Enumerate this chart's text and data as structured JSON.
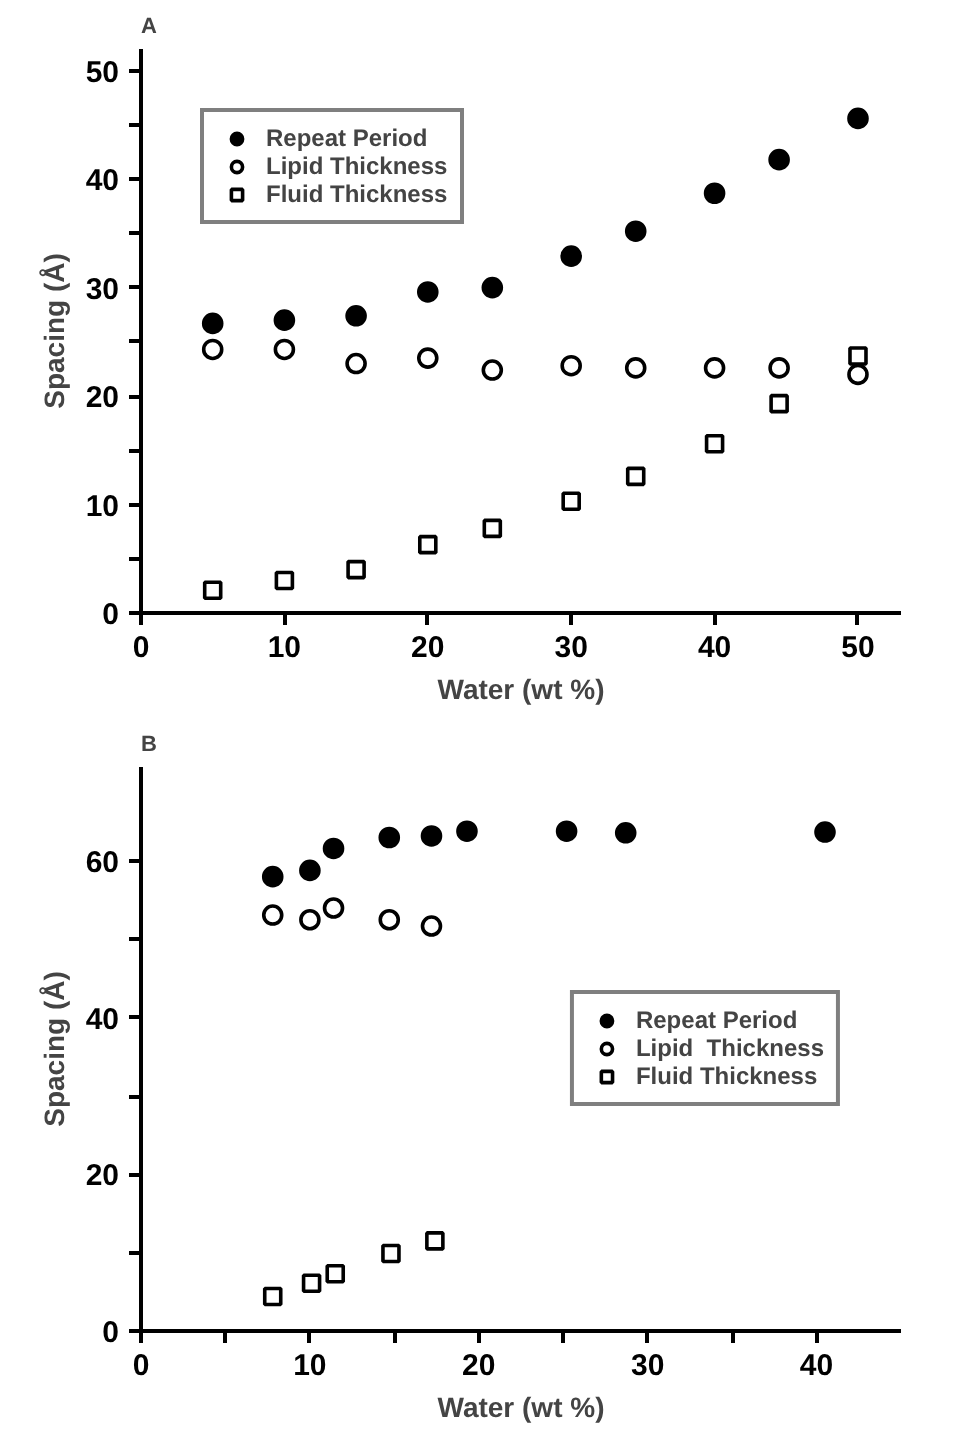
{
  "chart_data": [
    {
      "type": "scatter",
      "title": "A",
      "xlabel": "Water (wt %)",
      "ylabel": "Spacing (Å)",
      "xlim": [
        0,
        53
      ],
      "ylim": [
        0,
        52
      ],
      "xticks": [
        0,
        10,
        20,
        30,
        40,
        50
      ],
      "yticks": [
        0,
        {
          "value": 5,
          "label": null
        },
        10,
        {
          "value": 15,
          "label": null
        },
        20,
        {
          "value": 25,
          "label": null
        },
        30,
        {
          "value": 35,
          "label": null
        },
        40,
        {
          "value": 45,
          "label": null
        },
        50
      ],
      "grid": false,
      "legend": "top left",
      "series": [
        {
          "name": "Repeat Period",
          "color": "#000000",
          "marker": "circle",
          "x": [
            5,
            10,
            15,
            20,
            24.5,
            30,
            34.5,
            40,
            44.5,
            50
          ],
          "values": [
            26.7,
            27.0,
            27.4,
            29.6,
            30.0,
            32.9,
            35.2,
            38.7,
            41.8,
            45.6
          ]
        },
        {
          "name": "Lipid Thickness",
          "color": "#000000",
          "marker": "circle_open",
          "x": [
            5,
            10,
            15,
            20,
            24.5,
            30,
            34.5,
            40,
            44.5,
            50
          ],
          "values": [
            24.3,
            24.3,
            23.0,
            23.5,
            22.4,
            22.8,
            22.6,
            22.6,
            22.6,
            22.0
          ]
        },
        {
          "name": "Fluid Thickness",
          "color": "#000000",
          "marker": "square_open",
          "x": [
            5,
            10,
            15,
            20,
            24.5,
            30,
            34.5,
            40,
            44.5,
            50
          ],
          "values": [
            2.1,
            3.0,
            4.0,
            6.3,
            7.8,
            10.3,
            12.6,
            15.6,
            19.3,
            23.7
          ]
        }
      ]
    },
    {
      "type": "scatter",
      "title": "B",
      "xlabel": "Water (wt %)",
      "ylabel": "Spacing (Å)",
      "xlim": [
        0,
        45
      ],
      "ylim": [
        0,
        72
      ],
      "xticks": [
        0,
        {
          "value": 5,
          "label": null
        },
        10,
        {
          "value": 15,
          "label": null
        },
        20,
        {
          "value": 25,
          "label": null
        },
        30,
        {
          "value": 35,
          "label": null
        },
        40
      ],
      "yticks": [
        0,
        {
          "value": 10,
          "label": null
        },
        20,
        {
          "value": 30,
          "label": null
        },
        40,
        {
          "value": 50,
          "label": null
        },
        60
      ],
      "grid": false,
      "legend": "right",
      "series": [
        {
          "name": "Repeat Period",
          "color": "#000000",
          "marker": "circle",
          "x": [
            7.8,
            10.0,
            11.4,
            14.7,
            17.2,
            19.3,
            25.2,
            28.7,
            40.5
          ],
          "values": [
            58.0,
            58.8,
            61.6,
            63.0,
            63.2,
            63.8,
            63.8,
            63.6,
            63.7
          ]
        },
        {
          "name": "Lipid  Thickness",
          "color": "#000000",
          "marker": "circle_open",
          "x": [
            7.8,
            10.0,
            11.4,
            14.7,
            17.2
          ],
          "values": [
            53.1,
            52.5,
            54.0,
            52.5,
            51.7
          ]
        },
        {
          "name": "Fluid Thickness",
          "color": "#000000",
          "marker": "square_open",
          "x": [
            7.8,
            10.1,
            11.5,
            14.8,
            17.4
          ],
          "values": [
            4.4,
            6.1,
            7.3,
            9.9,
            11.5
          ]
        }
      ]
    }
  ]
}
